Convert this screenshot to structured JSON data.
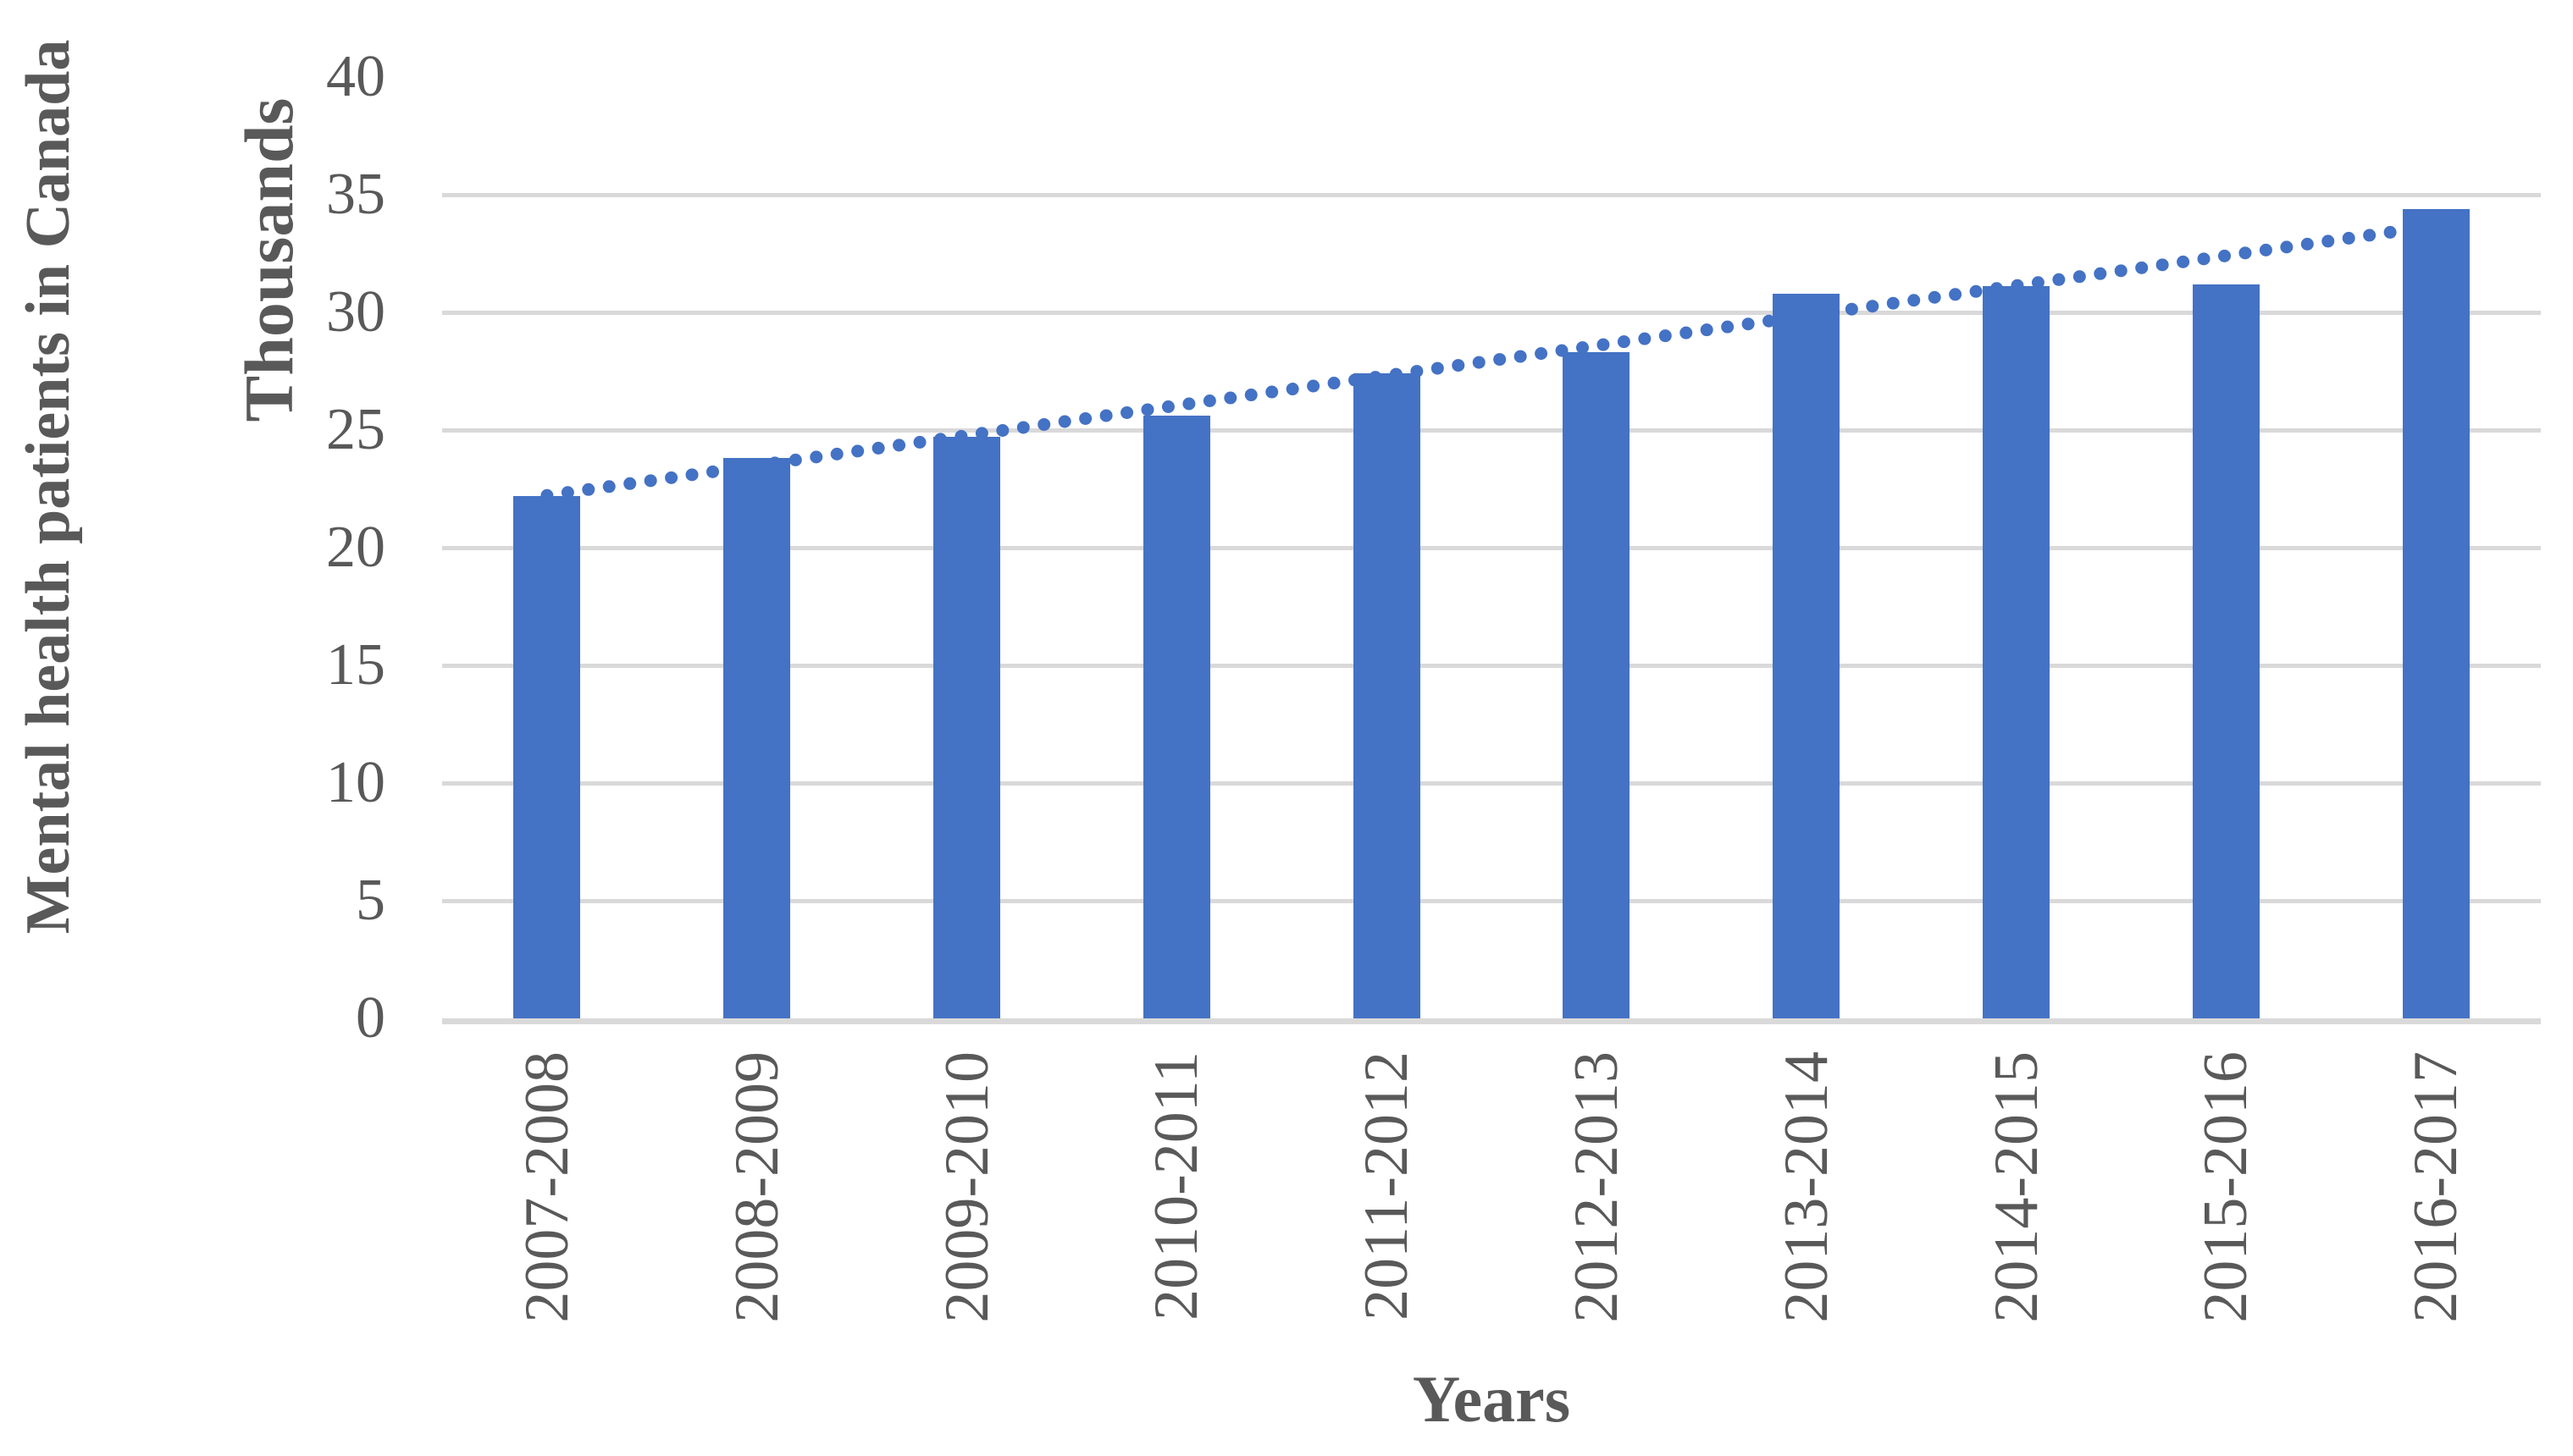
{
  "chart_data": {
    "type": "bar",
    "title": "",
    "categories": [
      "2007-2008",
      "2008-2009",
      "2009-2010",
      "2010-2011",
      "2011-2012",
      "2012-2013",
      "2013-2014",
      "2014-2015",
      "2015-2016",
      "2016-2017"
    ],
    "values": [
      22.2,
      23.8,
      24.7,
      25.6,
      27.4,
      28.3,
      30.8,
      31.1,
      31.2,
      34.4
    ],
    "series_name": "Mental health patients in Canada (thousands)",
    "xlabel": "Years",
    "ylabel": "Mental health patients in Canada",
    "y_units_label": "Thousands",
    "ylim": [
      0,
      40
    ],
    "ytick_interval": 5,
    "yticks": [
      0,
      5,
      10,
      15,
      20,
      25,
      30,
      35,
      40
    ],
    "grid": true,
    "gridline_top_value_drawn": 35,
    "legend": "none",
    "trendline": {
      "type": "linear",
      "style": "dotted",
      "fit_start_value": 22.2,
      "fit_end_value": 33.6
    },
    "colors": {
      "bar": "#4472C4",
      "trendline": "#4472C4",
      "gridline": "#D9D9D9",
      "axis_line": "#D9D9D9",
      "text": "#595959"
    }
  },
  "labels": {
    "ylabel": "Mental health patients in Canada",
    "units": "Thousands",
    "xlabel": "Years"
  }
}
